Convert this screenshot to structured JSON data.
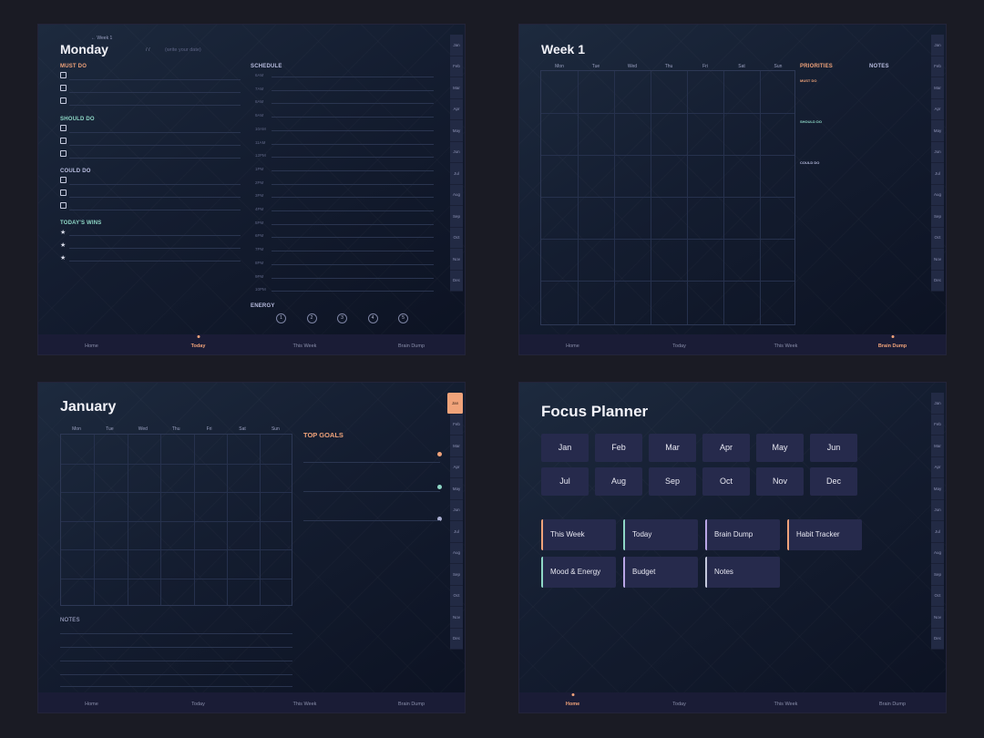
{
  "months": [
    "Jan",
    "Feb",
    "Mar",
    "Apr",
    "May",
    "Jun",
    "Jul",
    "Aug",
    "Sep",
    "Oct",
    "Nov",
    "Dec"
  ],
  "nav": [
    "Home",
    "Today",
    "This Week",
    "Brain Dump"
  ],
  "daily": {
    "back": "← Week 1",
    "title": "Monday",
    "date_sep": "/ /",
    "date_placeholder": "(write your date)",
    "must_do": "MUST DO",
    "should_do": "SHOULD DO",
    "could_do": "COULD DO",
    "wins": "TODAY'S WINS",
    "star": "★",
    "schedule": "SCHEDULE",
    "times": [
      "6AM",
      "7AM",
      "8AM",
      "9AM",
      "10AM",
      "11AM",
      "12PM",
      "1PM",
      "2PM",
      "3PM",
      "4PM",
      "5PM",
      "6PM",
      "7PM",
      "8PM",
      "9PM",
      "10PM"
    ],
    "energy": "ENERGY",
    "energy_levels": [
      "1",
      "2",
      "3",
      "4",
      "5"
    ]
  },
  "weekly": {
    "title": "Week 1",
    "days": [
      "Mon",
      "Tue",
      "Wed",
      "Thu",
      "Fri",
      "Sat",
      "Sun"
    ],
    "priorities": "PRIORITIES",
    "notes": "NOTES",
    "must_do": "MUST DO",
    "should_do": "SHOULD DO",
    "could_do": "COULD DO"
  },
  "monthly": {
    "title": "January",
    "days": [
      "Mon",
      "Tue",
      "Wed",
      "Thu",
      "Fri",
      "Sat",
      "Sun"
    ],
    "top_goals": "TOP GOALS",
    "notes": "NOTES"
  },
  "home": {
    "title": "Focus Planner",
    "quick": [
      {
        "label": "This Week",
        "color": "#f0a37a"
      },
      {
        "label": "Today",
        "color": "#8ed7c6"
      },
      {
        "label": "Brain Dump",
        "color": "#b9a6e6"
      },
      {
        "label": "Habit Tracker",
        "color": "#f0a37a"
      },
      {
        "label": "Mood & Energy",
        "color": "#8ed7c6"
      },
      {
        "label": "Budget",
        "color": "#b9a6e6"
      },
      {
        "label": "Notes",
        "color": "#c4c8dc"
      }
    ]
  },
  "colors": {
    "accent": "#f0a37a",
    "teal": "#8ed7c6",
    "lavender": "#b9a6e6",
    "bg": "#1a1b24"
  }
}
